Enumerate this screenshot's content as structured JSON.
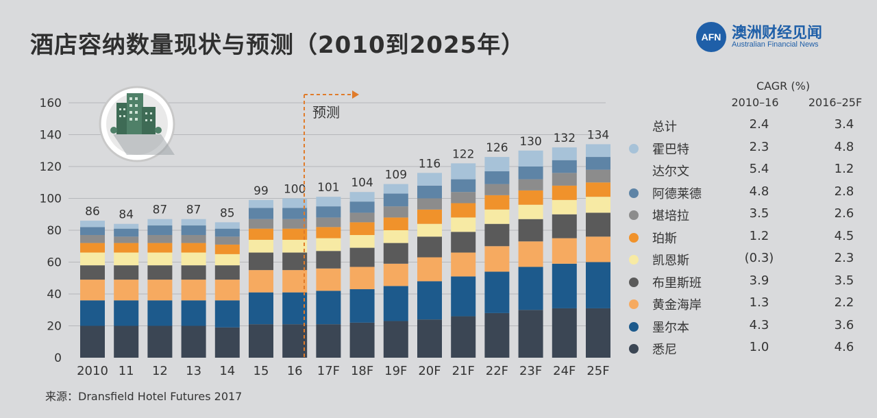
{
  "title": "酒店容纳数量现状与预测（2010到2025年）",
  "logo": {
    "badge": "AFN",
    "cn": "澳洲财经见闻",
    "en": "Australian Financial News"
  },
  "source": "来源：Dransfield Hotel Futures 2017",
  "forecast_label": "预测",
  "cagr_header": {
    "title": "CAGR (%)",
    "col1": "2010–16",
    "col2": "2016–25F"
  },
  "legend": [
    {
      "name": "总计",
      "color": "",
      "cagr1": "2.4",
      "cagr2": "3.4"
    },
    {
      "name": "霍巴特",
      "color": "#a7c2d8",
      "cagr1": "2.3",
      "cagr2": "4.8"
    },
    {
      "name": "达尔文",
      "color": "",
      "cagr1": "5.4",
      "cagr2": "1.2"
    },
    {
      "name": "阿德莱德",
      "color": "#5e84a6",
      "cagr1": "4.8",
      "cagr2": "2.8"
    },
    {
      "name": "堪培拉",
      "color": "#8c8c8c",
      "cagr1": "3.5",
      "cagr2": "2.6"
    },
    {
      "name": "珀斯",
      "color": "#f0922b",
      "cagr1": "1.2",
      "cagr2": "4.5"
    },
    {
      "name": "凯恩斯",
      "color": "#f7eaa4",
      "cagr1": "(0.3)",
      "cagr2": "2.3"
    },
    {
      "name": "布里斯班",
      "color": "#5a5a5a",
      "cagr1": "3.9",
      "cagr2": "3.5"
    },
    {
      "name": "黄金海岸",
      "color": "#f6aa60",
      "cagr1": "1.3",
      "cagr2": "2.2"
    },
    {
      "name": "墨尔本",
      "color": "#1d5a8c",
      "cagr1": "4.3",
      "cagr2": "3.6"
    },
    {
      "name": "悉尼",
      "color": "#3b4654",
      "cagr1": "1.0",
      "cagr2": "4.6"
    }
  ],
  "chart_data": {
    "type": "bar",
    "stacked": true,
    "title": "酒店容纳数量现状与预测（2010到2025年）",
    "xlabel": "",
    "ylabel": "",
    "ylim": [
      0,
      160
    ],
    "yticks": [
      0,
      20,
      40,
      60,
      80,
      100,
      120,
      140,
      160
    ],
    "categories": [
      "2010",
      "11",
      "12",
      "13",
      "14",
      "15",
      "16",
      "17F",
      "18F",
      "19F",
      "20F",
      "21F",
      "22F",
      "23F",
      "24F",
      "25F"
    ],
    "totals": [
      86,
      84,
      87,
      87,
      85,
      99,
      100,
      101,
      104,
      109,
      116,
      122,
      126,
      130,
      132,
      134
    ],
    "series": [
      {
        "name": "悉尼",
        "color": "#3b4654",
        "values": [
          20,
          20,
          20,
          20,
          19,
          21,
          21,
          21,
          22,
          23,
          24,
          26,
          28,
          30,
          31,
          31
        ]
      },
      {
        "name": "墨尔本",
        "color": "#1d5a8c",
        "values": [
          16,
          16,
          16,
          16,
          17,
          20,
          20,
          21,
          21,
          22,
          24,
          25,
          26,
          27,
          28,
          29
        ]
      },
      {
        "name": "黄金海岸",
        "color": "#f6aa60",
        "values": [
          13,
          13,
          13,
          13,
          13,
          14,
          14,
          14,
          14,
          14,
          15,
          15,
          16,
          16,
          16,
          16
        ]
      },
      {
        "name": "布里斯班",
        "color": "#5a5a5a",
        "values": [
          9,
          9,
          9,
          9,
          9,
          11,
          11,
          11,
          12,
          13,
          13,
          13,
          14,
          14,
          15,
          15
        ]
      },
      {
        "name": "凯恩斯",
        "color": "#f7eaa4",
        "values": [
          8,
          8,
          8,
          8,
          7,
          8,
          8,
          8,
          8,
          8,
          8,
          9,
          9,
          9,
          9,
          10
        ]
      },
      {
        "name": "珀斯",
        "color": "#f0922b",
        "values": [
          6,
          6,
          6,
          6,
          6,
          7,
          7,
          7,
          8,
          8,
          9,
          9,
          9,
          9,
          9,
          9
        ]
      },
      {
        "name": "堪培拉",
        "color": "#8c8c8c",
        "values": [
          5,
          4,
          5,
          5,
          5,
          6,
          6,
          6,
          6,
          7,
          7,
          7,
          7,
          7,
          8,
          8
        ]
      },
      {
        "name": "阿德莱德",
        "color": "#5e84a6",
        "values": [
          5,
          5,
          6,
          6,
          5,
          7,
          7,
          7,
          7,
          8,
          8,
          8,
          8,
          8,
          8,
          8
        ]
      },
      {
        "name": "霍巴特",
        "color": "#a7c2d8",
        "values": [
          4,
          3,
          4,
          4,
          4,
          5,
          6,
          6,
          6,
          6,
          8,
          10,
          9,
          10,
          8,
          8
        ]
      }
    ]
  }
}
